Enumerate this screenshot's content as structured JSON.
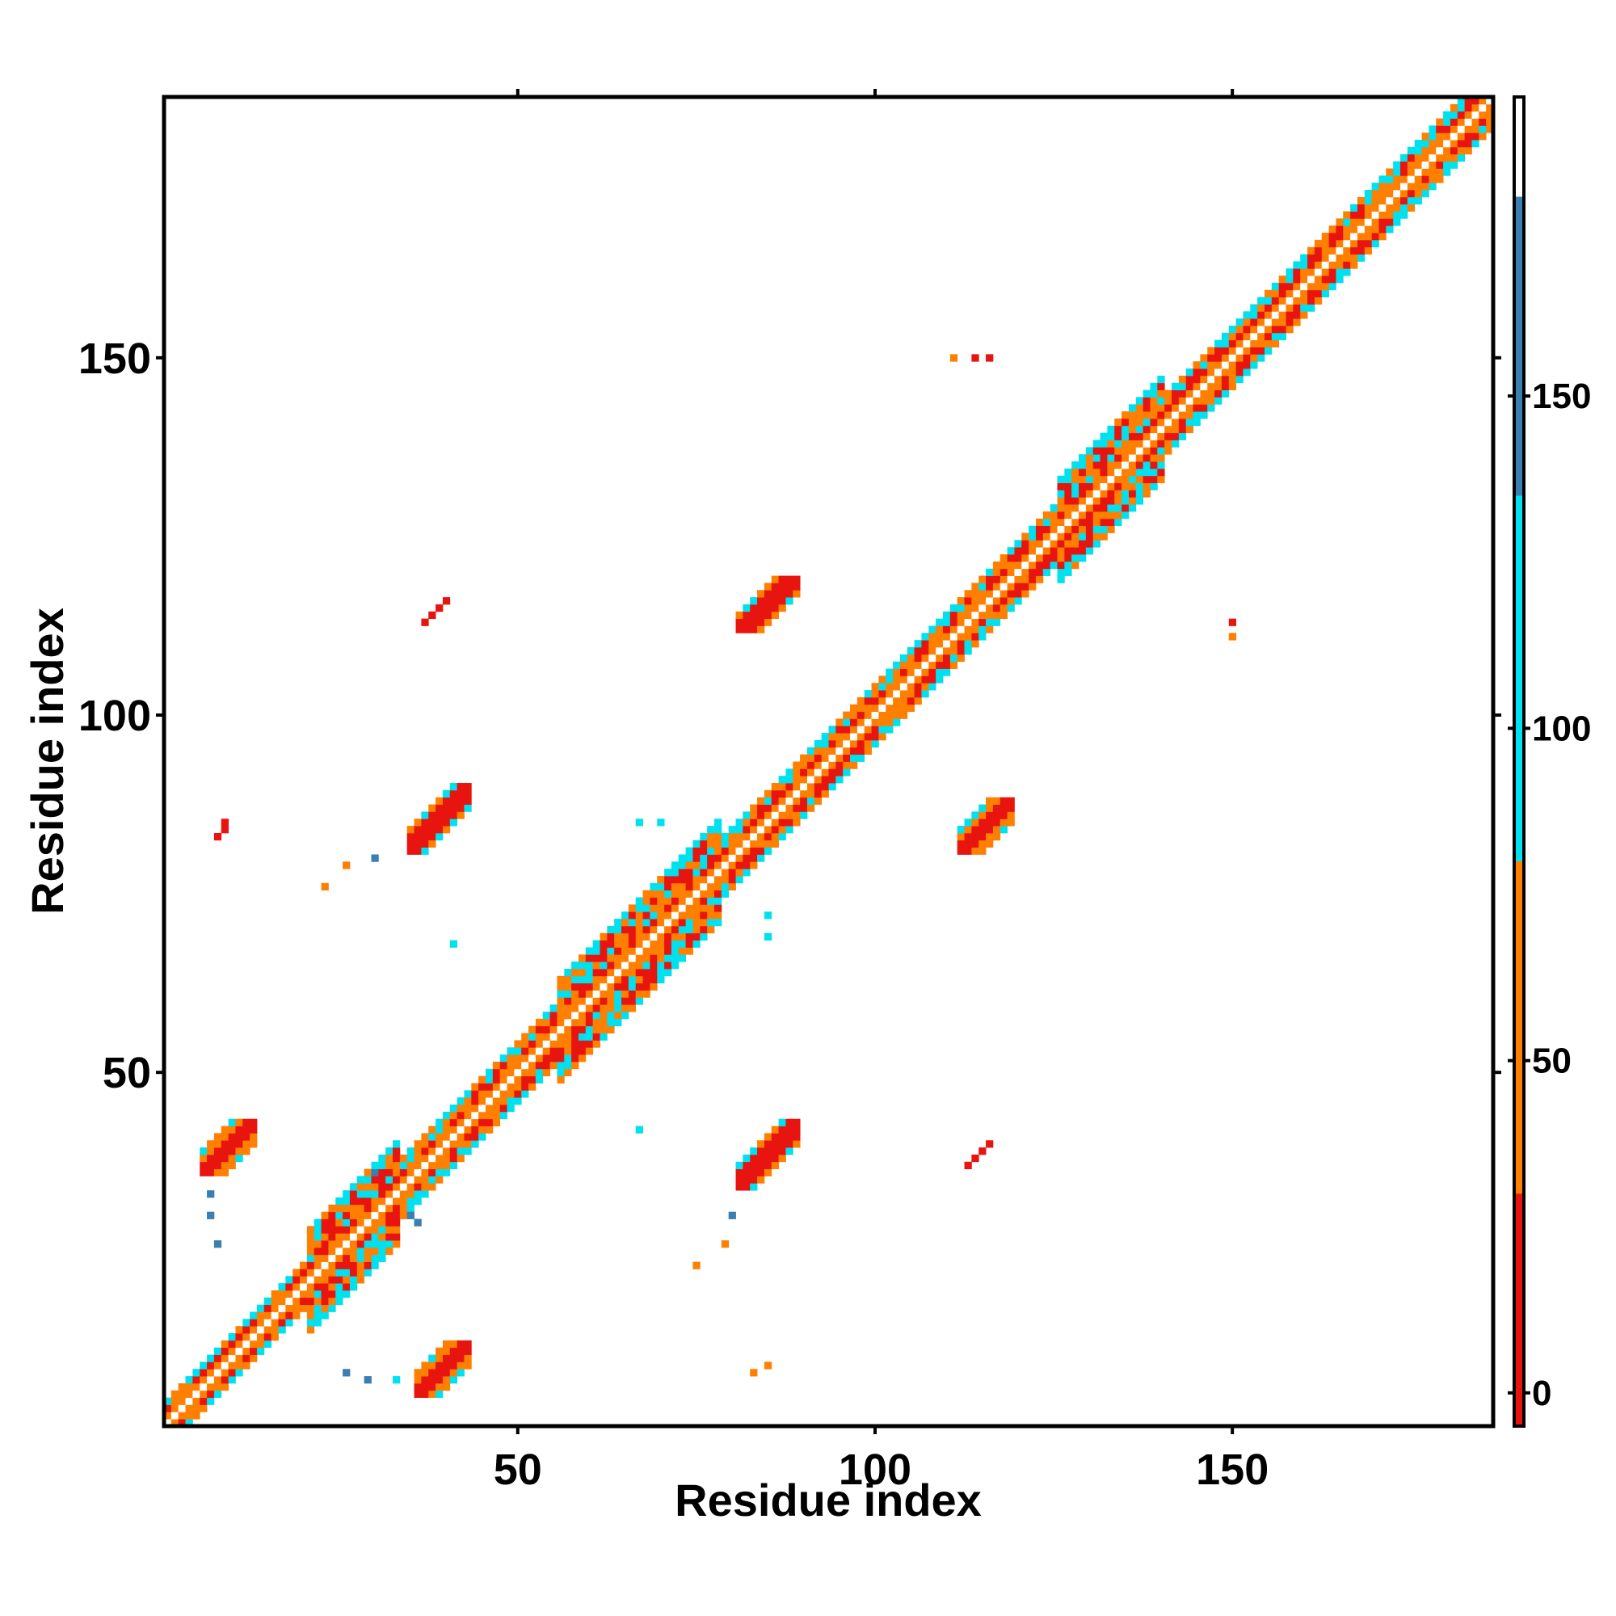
{
  "chart_data": {
    "type": "heatmap",
    "title": "",
    "xlabel": "Residue index",
    "ylabel": "Residue index",
    "xlim": [
      1,
      186
    ],
    "ylim": [
      1,
      186
    ],
    "x_ticks": [
      50,
      100,
      150
    ],
    "y_ticks": [
      50,
      100,
      150
    ],
    "colorbar": {
      "range": [
        -5,
        195
      ],
      "ticks": [
        0,
        50,
        100,
        150
      ],
      "stops": [
        {
          "from": -5,
          "to": 30,
          "color": "#e8140f"
        },
        {
          "from": 30,
          "to": 80,
          "color": "#ff7f00"
        },
        {
          "from": 80,
          "to": 135,
          "color": "#00e1f0"
        },
        {
          "from": 135,
          "to": 180,
          "color": "#3a7fb0"
        },
        {
          "from": 180,
          "to": 195,
          "color": "#ffffff"
        }
      ]
    },
    "colors": {
      "contact_close": "#e8140f",
      "contact_mid": "#ff7f00",
      "contact_far": "#00e1f0",
      "contact_farthest": "#3a7fb0"
    },
    "diagonal_band": [
      {
        "from": 1,
        "to": 20,
        "half_width": 3
      },
      {
        "from": 20,
        "to": 33,
        "half_width": 7
      },
      {
        "from": 33,
        "to": 55,
        "half_width": 4
      },
      {
        "from": 55,
        "to": 78,
        "half_width": 7
      },
      {
        "from": 78,
        "to": 125,
        "half_width": 4
      },
      {
        "from": 125,
        "to": 140,
        "half_width": 7
      },
      {
        "from": 140,
        "to": 186,
        "half_width": 4
      }
    ],
    "contact_patches": [
      {
        "x": [
          35,
          43
        ],
        "y": [
          81,
          90
        ]
      },
      {
        "x": [
          81,
          89
        ],
        "y": [
          112,
          119
        ]
      },
      {
        "x": [
          112,
          119
        ],
        "y": [
          81,
          88
        ]
      },
      {
        "x": [
          6,
          13
        ],
        "y": [
          36,
          43
        ]
      },
      {
        "x": [
          36,
          43
        ],
        "y": [
          5,
          12
        ]
      },
      {
        "x": [
          81,
          89
        ],
        "y": [
          34,
          43
        ]
      }
    ],
    "line_contacts": [
      {
        "from": [
          37,
          113
        ],
        "to": [
          40,
          116
        ]
      },
      {
        "from": [
          113,
          37
        ],
        "to": [
          116,
          40
        ]
      },
      {
        "from": [
          8,
          83
        ],
        "to": [
          9,
          85
        ]
      }
    ],
    "scattered_cells": [
      {
        "x": 114,
        "y": 150,
        "value": 10
      },
      {
        "x": 111,
        "y": 150,
        "value": 60
      },
      {
        "x": 116,
        "y": 150,
        "value": 5
      },
      {
        "x": 150,
        "y": 113,
        "value": 10
      },
      {
        "x": 150,
        "y": 111,
        "value": 60
      },
      {
        "x": 67,
        "y": 85,
        "value": 120
      },
      {
        "x": 70,
        "y": 85,
        "value": 120
      },
      {
        "x": 85,
        "y": 72,
        "value": 120
      },
      {
        "x": 85,
        "y": 69,
        "value": 120
      },
      {
        "x": 41,
        "y": 68,
        "value": 120
      },
      {
        "x": 23,
        "y": 76,
        "value": 60
      },
      {
        "x": 26,
        "y": 79,
        "value": 60
      },
      {
        "x": 30,
        "y": 80,
        "value": 150
      },
      {
        "x": 67,
        "y": 42,
        "value": 120
      },
      {
        "x": 79,
        "y": 26,
        "value": 60
      },
      {
        "x": 75,
        "y": 23,
        "value": 60
      },
      {
        "x": 80,
        "y": 30,
        "value": 150
      },
      {
        "x": 83,
        "y": 8,
        "value": 60
      },
      {
        "x": 85,
        "y": 9,
        "value": 60
      },
      {
        "x": 26,
        "y": 8,
        "value": 150
      },
      {
        "x": 29,
        "y": 7,
        "value": 150
      },
      {
        "x": 33,
        "y": 7,
        "value": 120
      },
      {
        "x": 7,
        "y": 33,
        "value": 150
      },
      {
        "x": 7,
        "y": 30,
        "value": 150
      },
      {
        "x": 8,
        "y": 26,
        "value": 150
      },
      {
        "x": 35,
        "y": 30,
        "value": 150
      },
      {
        "x": 36,
        "y": 29,
        "value": 150
      },
      {
        "x": 30,
        "y": 36,
        "value": 150
      }
    ]
  }
}
